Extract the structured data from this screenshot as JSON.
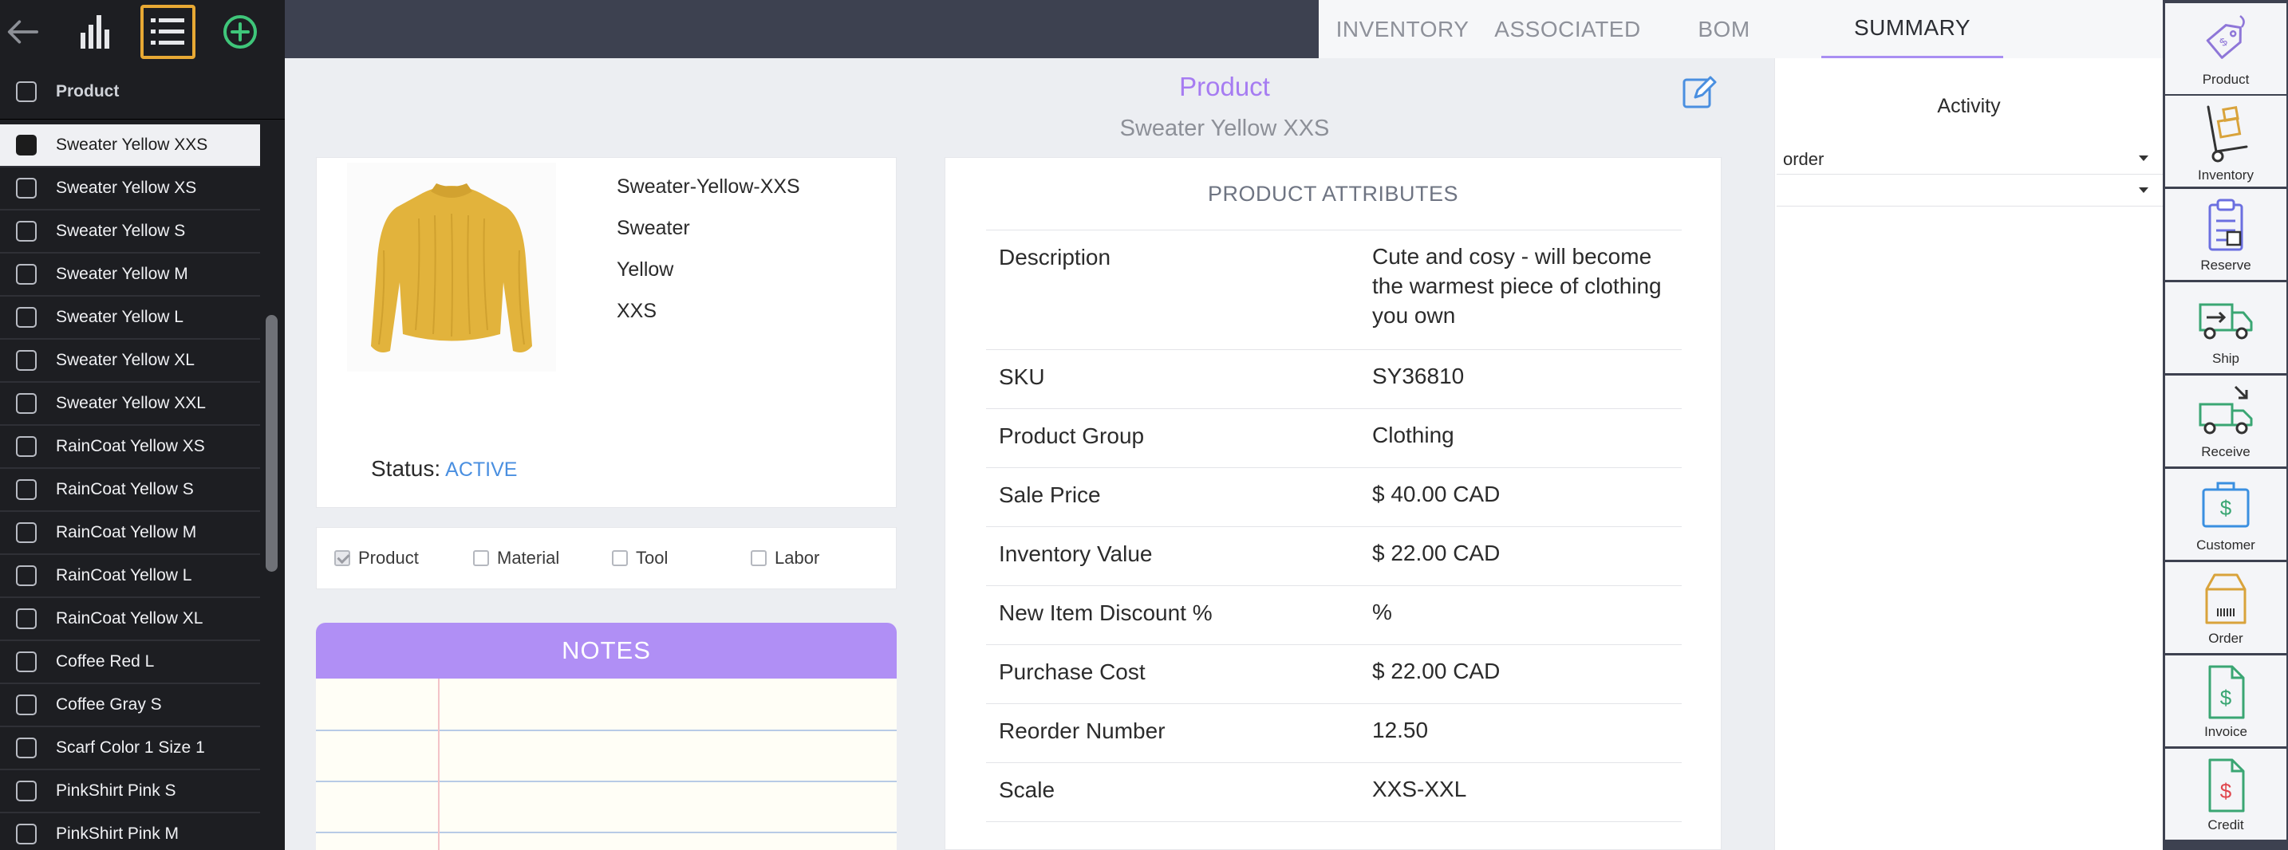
{
  "toolbar": {
    "back_icon": "arrow-left-icon",
    "chart_icon": "bar-chart-icon",
    "list_icon": "list-icon",
    "add_icon": "plus-circle-icon"
  },
  "sidebar": {
    "header_label": "Product",
    "items": [
      {
        "label": "Sweater Yellow XXS",
        "selected": true
      },
      {
        "label": "Sweater Yellow XS"
      },
      {
        "label": "Sweater Yellow S"
      },
      {
        "label": "Sweater Yellow M"
      },
      {
        "label": "Sweater Yellow L"
      },
      {
        "label": "Sweater Yellow XL"
      },
      {
        "label": "Sweater Yellow XXL"
      },
      {
        "label": "RainCoat Yellow XS"
      },
      {
        "label": "RainCoat Yellow S"
      },
      {
        "label": "RainCoat Yellow M"
      },
      {
        "label": "RainCoat Yellow L"
      },
      {
        "label": "RainCoat Yellow XL"
      },
      {
        "label": "Coffee Red L"
      },
      {
        "label": "Coffee Gray S"
      },
      {
        "label": "Scarf Color 1 Size 1"
      },
      {
        "label": "PinkShirt Pink S"
      },
      {
        "label": "PinkShirt Pink M"
      }
    ]
  },
  "tabs": [
    {
      "label": "INVENTORY"
    },
    {
      "label": "ASSOCIATED"
    },
    {
      "label": "BOM"
    },
    {
      "label": "SUMMARY",
      "active": true
    }
  ],
  "main": {
    "title": "Product",
    "subtitle": "Sweater Yellow XXS",
    "product_lines": [
      "Sweater-Yellow-XXS",
      "Sweater",
      "Yellow",
      "XXS"
    ],
    "status_label": "Status:",
    "status_value": "ACTIVE",
    "types": [
      {
        "label": "Product",
        "checked": true
      },
      {
        "label": "Material",
        "checked": false
      },
      {
        "label": "Tool",
        "checked": false
      },
      {
        "label": "Labor",
        "checked": false
      }
    ],
    "notes_title": "NOTES",
    "attributes_title": "PRODUCT ATTRIBUTES",
    "attributes": [
      {
        "key": "Description",
        "value": "Cute and cosy - will become the warmest piece of clothing you own"
      },
      {
        "key": "SKU",
        "value": "SY36810"
      },
      {
        "key": "Product Group",
        "value": "Clothing"
      },
      {
        "key": "Sale Price",
        "value": "$ 40.00 CAD"
      },
      {
        "key": "Inventory Value",
        "value": "$ 22.00 CAD"
      },
      {
        "key": "New Item Discount %",
        "value": "%"
      },
      {
        "key": "Purchase Cost",
        "value": "$ 22.00 CAD"
      },
      {
        "key": "Reorder Number",
        "value": "12.50"
      },
      {
        "key": "Scale",
        "value": "XXS-XXL"
      }
    ]
  },
  "activity": {
    "title": "Activity",
    "select1_value": "order",
    "select2_value": ""
  },
  "actions": [
    {
      "label": "Product",
      "icon": "price-tag-icon"
    },
    {
      "label": "Inventory",
      "icon": "hand-truck-icon"
    },
    {
      "label": "Reserve",
      "icon": "clipboard-icon"
    },
    {
      "label": "Ship",
      "icon": "truck-outbound-icon"
    },
    {
      "label": "Receive",
      "icon": "truck-inbound-icon"
    },
    {
      "label": "Customer",
      "icon": "customer-dollar-icon"
    },
    {
      "label": "Order",
      "icon": "order-box-icon"
    },
    {
      "label": "Invoice",
      "icon": "invoice-icon"
    },
    {
      "label": "Credit",
      "icon": "credit-note-icon"
    }
  ],
  "colors": {
    "accent_purple": "#a67cf2",
    "notes_header": "#b08ff5",
    "status_blue": "#4a8fe0",
    "list_button_border": "#e8a934",
    "add_button_green": "#3fc67a"
  }
}
